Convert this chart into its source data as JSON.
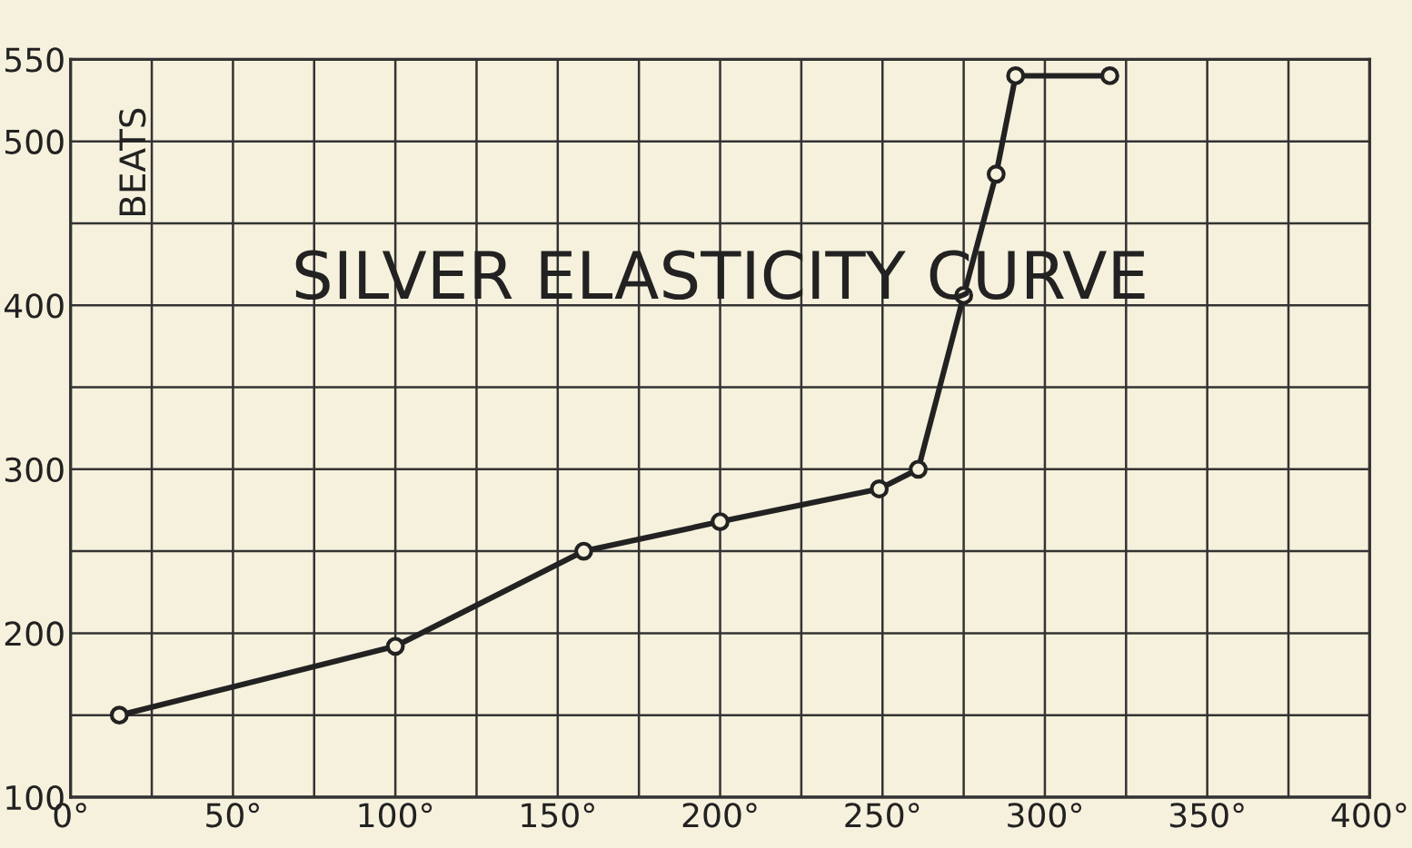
{
  "chart_data": {
    "type": "line",
    "title": "SILVER ELASTICITY CURVE",
    "ylabel": "BEATS",
    "x": [
      15,
      100,
      158,
      200,
      249,
      261,
      275,
      285,
      291,
      320
    ],
    "series": [
      {
        "color": "#222222",
        "values": [
          150,
          192,
          250,
          268,
          288,
          300,
          406,
          480,
          540,
          540
        ]
      }
    ],
    "xlim": [
      0,
      400
    ],
    "xticks": [
      {
        "value": 0,
        "label": "0°"
      },
      {
        "value": 25,
        "label": null
      },
      {
        "value": 50,
        "label": "50°"
      },
      {
        "value": 75,
        "label": null
      },
      {
        "value": 100,
        "label": "100°"
      },
      {
        "value": 125,
        "label": null
      },
      {
        "value": 150,
        "label": "150°"
      },
      {
        "value": 175,
        "label": null
      },
      {
        "value": 200,
        "label": "200°"
      },
      {
        "value": 225,
        "label": null
      },
      {
        "value": 250,
        "label": "250°"
      },
      {
        "value": 275,
        "label": null
      },
      {
        "value": 300,
        "label": "300°"
      },
      {
        "value": 325,
        "label": null
      },
      {
        "value": 350,
        "label": "350°"
      },
      {
        "value": 375,
        "label": null
      },
      {
        "value": 400,
        "label": "400°"
      }
    ],
    "ylim": [
      100,
      550
    ],
    "yticks": [
      100,
      {
        "value": 150,
        "label": null
      },
      200,
      {
        "value": 250,
        "label": null
      },
      300,
      {
        "value": 350,
        "label": null
      },
      400,
      {
        "value": 450,
        "label": null
      },
      500,
      550
    ],
    "grid": true,
    "marker": "circle",
    "line_style": "solid"
  }
}
